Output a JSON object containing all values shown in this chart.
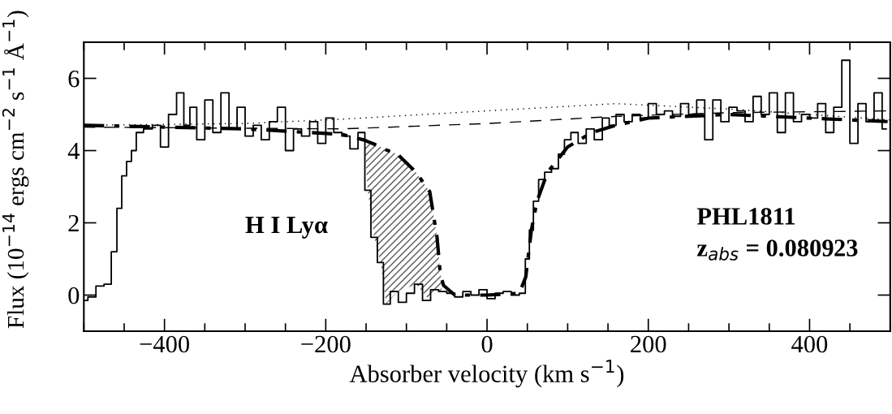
{
  "chart_data": {
    "type": "step",
    "xlabel": "Absorber velocity (km s$^{−1}$)",
    "ylabel": "Flux (10$^{−14}$ ergs cm$^{−2}$ s$^{−1}$ Å$^{−1}$)",
    "xlim": [
      -500,
      500
    ],
    "ylim": [
      -1,
      7
    ],
    "xticks": [
      -400,
      -200,
      0,
      200,
      400
    ],
    "yticks": [
      0,
      2,
      4,
      6
    ],
    "grid": false,
    "legend": false,
    "annotations": [
      "H I Lyα",
      "PHL1811",
      "z$_{abs}$ = 0.080923"
    ],
    "series": [
      {
        "type": "step",
        "color": "#000000",
        "line_style": "solid",
        "x": [
          -500,
          -490,
          -480,
          -470,
          -462,
          -456,
          -450,
          -444,
          -438,
          -432,
          -420,
          -410,
          -400,
          -390,
          -380,
          -372,
          -365,
          -355,
          -345,
          -335,
          -325,
          -315,
          -305,
          -295,
          -285,
          -275,
          -265,
          -255,
          -245,
          -235,
          -225,
          -215,
          -205,
          -195,
          -185,
          -175,
          -165,
          -155,
          -148,
          -140,
          -132,
          -125,
          -115,
          -105,
          -95,
          -85,
          -75,
          -65,
          -55,
          -45,
          -35,
          -25,
          -15,
          -5,
          5,
          15,
          25,
          35,
          45,
          50,
          55,
          60,
          68,
          75,
          85,
          92,
          100,
          108,
          118,
          128,
          138,
          148,
          155,
          165,
          175,
          185,
          195,
          205,
          215,
          225,
          235,
          245,
          255,
          265,
          275,
          285,
          295,
          305,
          315,
          325,
          335,
          345,
          355,
          365,
          375,
          385,
          395,
          405,
          415,
          425,
          435,
          445,
          455,
          465,
          475,
          485,
          495
        ],
        "values": [
          -0.15,
          -0.05,
          0.25,
          0.3,
          1.2,
          2.4,
          3.3,
          3.7,
          4.0,
          4.5,
          4.6,
          4.7,
          4.1,
          5.0,
          5.6,
          4.7,
          5.2,
          4.3,
          5.4,
          4.5,
          5.6,
          4.6,
          5.2,
          4.4,
          4.7,
          4.3,
          4.8,
          5.2,
          4.0,
          4.6,
          4.4,
          4.8,
          4.2,
          4.9,
          4.5,
          4.4,
          4.05,
          4.5,
          2.9,
          1.6,
          0.9,
          -0.25,
          0.1,
          -0.2,
          0.05,
          0.3,
          -0.15,
          0.15,
          0.1,
          0.05,
          -0.05,
          0.1,
          0.0,
          0.15,
          -0.1,
          0.05,
          0.1,
          0.0,
          0.05,
          1.0,
          1.8,
          2.6,
          3.2,
          3.4,
          3.5,
          3.9,
          4.3,
          4.5,
          4.2,
          4.6,
          4.3,
          4.9,
          4.7,
          5.0,
          4.8,
          5.0,
          4.9,
          5.3,
          5.0,
          5.1,
          4.95,
          5.3,
          5.0,
          5.4,
          4.3,
          5.4,
          4.8,
          5.2,
          5.1,
          4.8,
          5.5,
          5.0,
          5.6,
          4.5,
          5.6,
          4.8,
          5.0,
          4.9,
          5.3,
          4.5,
          5.2,
          6.5,
          4.2,
          5.3,
          4.8,
          5.6,
          4.6
        ]
      },
      {
        "type": "line",
        "color": "#000000",
        "line_style": "dotted",
        "x": [
          -500,
          -300,
          -180,
          0,
          160,
          300,
          500
        ],
        "values": [
          4.7,
          4.75,
          4.87,
          5.1,
          5.3,
          5.15,
          4.85
        ]
      },
      {
        "type": "line",
        "color": "#000000",
        "line_style": "dashed",
        "x": [
          -500,
          -300,
          -180,
          0,
          162,
          300,
          500
        ],
        "values": [
          4.65,
          4.62,
          4.6,
          4.75,
          4.95,
          5.05,
          5.1
        ]
      },
      {
        "type": "line",
        "color": "#000000",
        "line_style": "dashdot",
        "x": [
          -500,
          -300,
          -180,
          -152,
          -148,
          -140,
          -132,
          -125,
          -111,
          -88,
          -71,
          -62,
          -58,
          -54,
          -40,
          0,
          40,
          48,
          55,
          62,
          75,
          100,
          130,
          160,
          200,
          300,
          400,
          500
        ],
        "values": [
          4.7,
          4.6,
          4.45,
          4.29,
          4.25,
          4.18,
          4.1,
          4.02,
          3.9,
          3.4,
          2.86,
          1.6,
          0.6,
          0.27,
          0.0,
          0.0,
          0.05,
          0.5,
          1.8,
          2.6,
          3.4,
          4.1,
          4.5,
          4.7,
          4.9,
          5.0,
          4.9,
          4.8
        ],
        "lower": [
          null,
          null,
          null,
          4.29,
          2.9,
          1.6,
          0.9,
          -0.25,
          0.1,
          0.3,
          -0.15,
          0.15,
          0.1,
          0.27,
          null,
          null,
          null,
          null,
          null,
          null,
          null,
          null,
          null,
          null,
          null,
          null,
          null,
          null
        ],
        "upper": [
          null,
          null,
          null,
          4.29,
          4.25,
          4.18,
          4.1,
          4.02,
          3.9,
          3.4,
          2.86,
          1.6,
          0.6,
          0.27,
          null,
          null,
          null,
          null,
          null,
          null,
          null,
          null,
          null,
          null,
          null,
          null,
          null,
          null
        ]
      }
    ]
  }
}
